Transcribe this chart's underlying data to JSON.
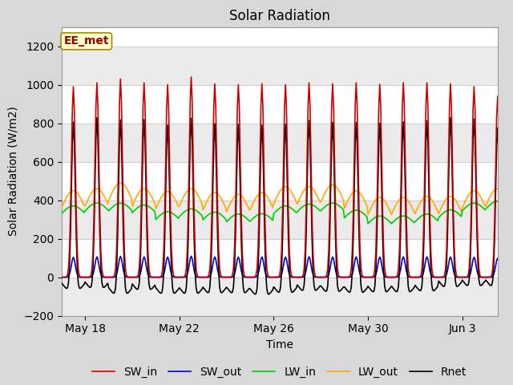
{
  "title": "Solar Radiation",
  "xlabel": "Time",
  "ylabel": "Solar Radiation (W/m2)",
  "ylim": [
    -200,
    1300
  ],
  "yticks": [
    -200,
    0,
    200,
    400,
    600,
    800,
    1000,
    1200
  ],
  "figure_bg_color": "#d8d8d8",
  "plot_bg_color": "#ffffff",
  "grid_color": "#d0d0d0",
  "annotation_label": "EE_met",
  "annotation_box_color": "#ffffcc",
  "annotation_box_edge": "#aa8800",
  "colors": {
    "SW_in": "#cc0000",
    "SW_out": "#0000cc",
    "LW_in": "#00cc00",
    "LW_out": "#ffaa00",
    "Rnet": "#000000"
  },
  "x_tick_labels": [
    "May 18",
    "May 22",
    "May 26",
    "May 30",
    "Jun 3"
  ],
  "x_tick_positions": [
    1,
    5,
    9,
    13,
    17
  ],
  "linewidth": 1.2,
  "title_fontsize": 12,
  "label_fontsize": 10,
  "tick_fontsize": 10,
  "legend_fontsize": 10,
  "n_days": 19,
  "dt_hours": 1.0
}
